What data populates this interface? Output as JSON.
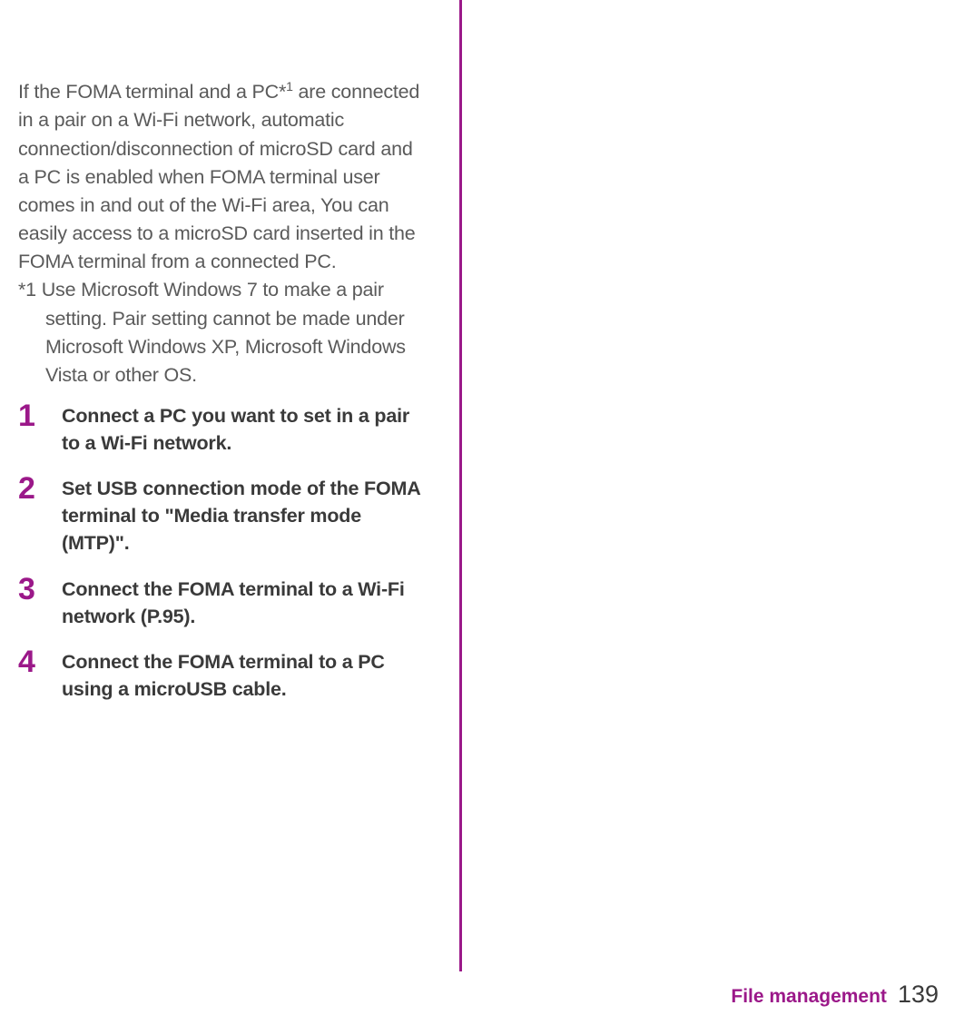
{
  "intro": {
    "pre_sup": "If the FOMA terminal and a PC*",
    "sup": "1",
    "post_sup": " are connected in a pair on a Wi-Fi network, automatic connection/disconnection of microSD card and a PC is enabled when FOMA terminal user comes in and out of the Wi-Fi area, You can easily access to a microSD card inserted in the FOMA terminal from a connected PC."
  },
  "footnote": "*1 Use Microsoft Windows 7 to make a pair setting. Pair setting cannot be made under Microsoft Windows XP, Microsoft Windows Vista or other OS.",
  "steps": [
    {
      "num": "1",
      "text": "Connect a PC you want to set in a pair to a Wi-Fi network."
    },
    {
      "num": "2",
      "text": "Set USB connection mode of the FOMA terminal to \"Media transfer mode (MTP)\"."
    },
    {
      "num": "3",
      "text": "Connect the FOMA terminal to a Wi-Fi network (P.95)."
    },
    {
      "num": "4",
      "text": "Connect the FOMA terminal to a PC using a microUSB cable."
    }
  ],
  "footer": {
    "section": "File management",
    "page": "139"
  },
  "colors": {
    "accent": "#9b1889",
    "body_text": "#5a5a5a",
    "step_text": "#3a3a3a",
    "background": "#ffffff"
  }
}
